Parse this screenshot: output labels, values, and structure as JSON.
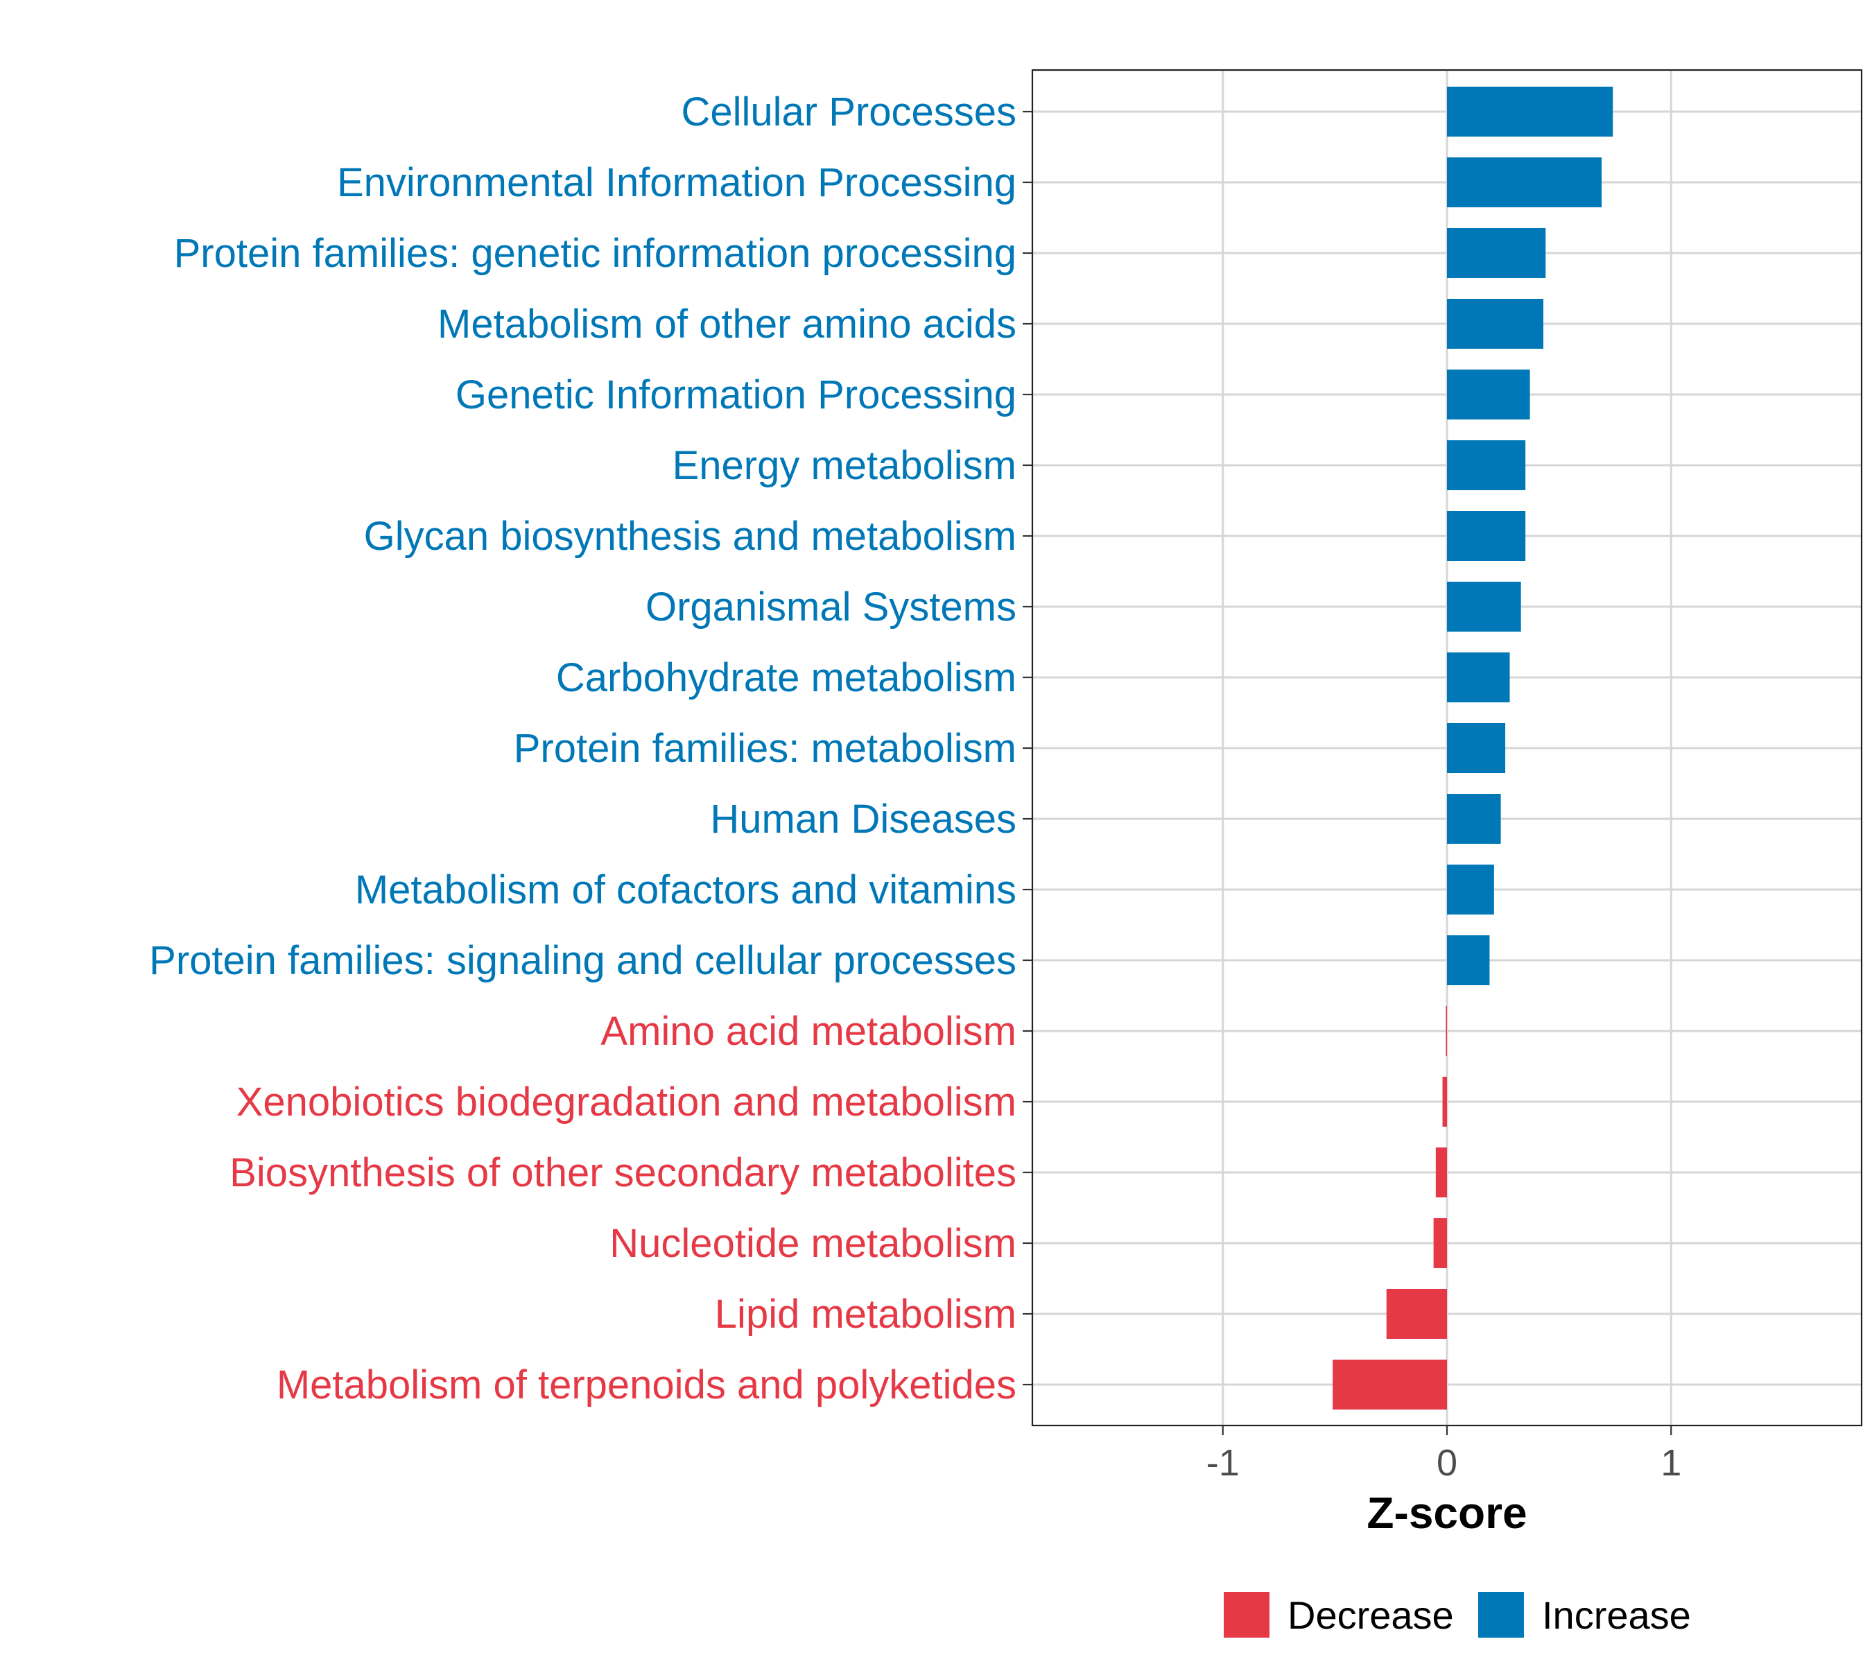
{
  "chart_data": {
    "type": "bar",
    "orientation": "horizontal",
    "title": "",
    "xlabel": "Z-score",
    "ylabel": "",
    "xlim": [
      -1.85,
      1.85
    ],
    "xticks": [
      -1,
      0,
      1
    ],
    "xtick_labels": [
      "-1",
      "0",
      "1"
    ],
    "grid": true,
    "legend_position": "bottom",
    "colors": {
      "Increase": "#0077B6",
      "Decrease": "#E63946"
    },
    "legend": [
      {
        "name": "Decrease",
        "color": "#E63946"
      },
      {
        "name": "Increase",
        "color": "#0077B6"
      }
    ],
    "categories": [
      "Cellular Processes",
      "Environmental Information Processing",
      "Protein families: genetic information processing",
      "Metabolism of other amino acids",
      "Genetic Information Processing",
      "Energy metabolism",
      "Glycan biosynthesis and metabolism",
      "Organismal Systems",
      "Carbohydrate metabolism",
      "Protein families: metabolism",
      "Human Diseases",
      "Metabolism of cofactors and vitamins",
      "Protein families: signaling and cellular processes",
      "Amino acid metabolism",
      "Xenobiotics biodegradation and metabolism",
      "Biosynthesis of other secondary metabolites",
      "Nucleotide metabolism",
      "Lipid metabolism",
      "Metabolism of terpenoids and polyketides"
    ],
    "values": [
      0.74,
      0.69,
      0.44,
      0.43,
      0.37,
      0.35,
      0.35,
      0.33,
      0.28,
      0.26,
      0.24,
      0.21,
      0.19,
      -0.005,
      -0.02,
      -0.05,
      -0.06,
      -0.27,
      -0.51
    ],
    "groups": [
      "Increase",
      "Increase",
      "Increase",
      "Increase",
      "Increase",
      "Increase",
      "Increase",
      "Increase",
      "Increase",
      "Increase",
      "Increase",
      "Increase",
      "Increase",
      "Decrease",
      "Decrease",
      "Decrease",
      "Decrease",
      "Decrease",
      "Decrease"
    ]
  }
}
